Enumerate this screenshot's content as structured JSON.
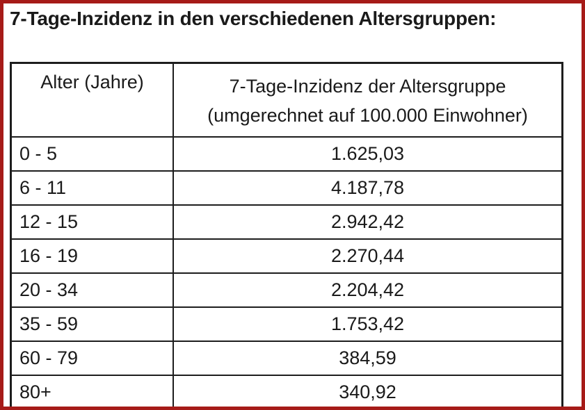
{
  "page": {
    "title": "7-Tage-Inzidenz in den verschiedenen Altersgruppen:"
  },
  "colors": {
    "frame_border": "#a61b18",
    "table_border": "#1d1d1d",
    "text": "#1a1a1a",
    "background": "#ffffff"
  },
  "table": {
    "headers": {
      "age": "Alter (Jahre)",
      "incidence_line1": "7-Tage-Inzidenz der Altersgruppe",
      "incidence_line2": "(umgerechnet auf 100.000 Einwohner)"
    },
    "rows": [
      {
        "age": "0 - 5",
        "incidence": "1.625,03"
      },
      {
        "age": "6 - 11",
        "incidence": "4.187,78"
      },
      {
        "age": "12 - 15",
        "incidence": "2.942,42"
      },
      {
        "age": "16 - 19",
        "incidence": "2.270,44"
      },
      {
        "age": "20 - 34",
        "incidence": "2.204,42"
      },
      {
        "age": "35 - 59",
        "incidence": "1.753,42"
      },
      {
        "age": "60 - 79",
        "incidence": "384,59"
      },
      {
        "age": "80+",
        "incidence": "340,92"
      }
    ]
  },
  "chart_data": {
    "type": "table",
    "title": "7-Tage-Inzidenz in den verschiedenen Altersgruppen:",
    "categories": [
      "0 - 5",
      "6 - 11",
      "12 - 15",
      "16 - 19",
      "20 - 34",
      "35 - 59",
      "60 - 79",
      "80+"
    ],
    "values": [
      1625.03,
      4187.78,
      2942.42,
      2270.44,
      2204.42,
      1753.42,
      384.59,
      340.92
    ],
    "xlabel": "Alter (Jahre)",
    "ylabel": "7-Tage-Inzidenz der Altersgruppe (umgerechnet auf 100.000 Einwohner)"
  }
}
